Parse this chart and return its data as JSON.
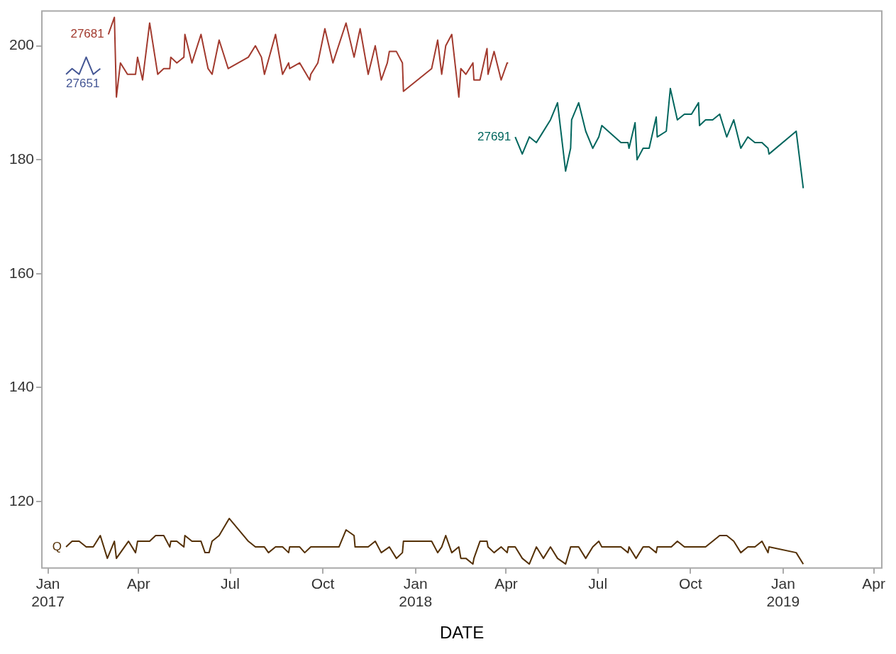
{
  "chart_data": {
    "type": "line",
    "xlabel": "DATE",
    "xlim": [
      "2016-12-26",
      "2019-04-09"
    ],
    "xticks": [
      {
        "value": "2017-01-01",
        "label": "Jan\n2017"
      },
      {
        "value": "2017-04-01",
        "label": "Apr"
      },
      {
        "value": "2017-07-01",
        "label": "Jul"
      },
      {
        "value": "2017-10-01",
        "label": "Oct"
      },
      {
        "value": "2018-01-01",
        "label": "Jan\n2018"
      },
      {
        "value": "2018-04-01",
        "label": "Apr"
      },
      {
        "value": "2018-07-01",
        "label": "Jul"
      },
      {
        "value": "2018-10-01",
        "label": "Oct"
      },
      {
        "value": "2019-01-01",
        "label": "Jan\n2019"
      },
      {
        "value": "2019-04-01",
        "label": "Apr"
      }
    ],
    "ylim": [
      108.3,
      206.1
    ],
    "yticks": [
      120,
      140,
      160,
      180,
      200
    ],
    "grid": false,
    "legend": false,
    "marker": "none",
    "line_style": "solid",
    "series": [
      {
        "name": "27651",
        "color": "#445694",
        "x": [
          "2017-01-19",
          "2017-01-25",
          "2017-02-01",
          "2017-02-08",
          "2017-02-15",
          "2017-02-22"
        ],
        "values": [
          195,
          196,
          195,
          198,
          195,
          196
        ]
      },
      {
        "name": "27681",
        "color": "#a23a2e",
        "x": [
          "2017-03-02",
          "2017-03-08",
          "2017-03-10",
          "2017-03-14",
          "2017-03-21",
          "2017-03-29",
          "2017-03-31",
          "2017-04-05",
          "2017-04-12",
          "2017-04-20",
          "2017-04-26",
          "2017-05-02",
          "2017-05-03",
          "2017-05-09",
          "2017-05-16",
          "2017-05-17",
          "2017-05-24",
          "2017-06-02",
          "2017-06-09",
          "2017-06-13",
          "2017-06-20",
          "2017-06-29",
          "2017-07-19",
          "2017-07-26",
          "2017-08-01",
          "2017-08-04",
          "2017-08-15",
          "2017-08-22",
          "2017-08-28",
          "2017-08-29",
          "2017-09-08",
          "2017-09-18",
          "2017-09-19",
          "2017-09-26",
          "2017-10-03",
          "2017-10-11",
          "2017-10-24",
          "2017-11-01",
          "2017-11-07",
          "2017-11-15",
          "2017-11-22",
          "2017-11-28",
          "2017-12-04",
          "2017-12-06",
          "2017-12-13",
          "2017-12-19",
          "2017-12-20",
          "2018-01-17",
          "2018-01-23",
          "2018-01-27",
          "2018-01-31",
          "2018-02-06",
          "2018-02-13",
          "2018-02-15",
          "2018-02-20",
          "2018-02-27",
          "2018-02-28",
          "2018-03-06",
          "2018-03-13",
          "2018-03-14",
          "2018-03-20",
          "2018-03-27",
          "2018-04-02",
          "2018-04-03"
        ],
        "values": [
          202,
          205,
          191,
          197,
          195,
          195,
          198,
          194,
          204,
          195,
          196,
          196,
          198,
          197,
          198,
          202,
          197,
          202,
          196,
          195,
          201,
          196,
          198,
          200,
          198,
          195,
          202,
          195,
          197,
          196,
          197,
          194,
          195,
          197,
          203,
          197,
          204,
          198,
          203,
          195,
          200,
          194,
          197,
          199,
          199,
          197,
          192,
          196,
          201,
          195,
          200,
          202,
          191,
          196,
          195,
          197,
          194,
          194,
          199.5,
          195,
          199,
          194,
          197,
          197
        ]
      },
      {
        "name": "27691",
        "color": "#01665e",
        "x": [
          "2018-04-10",
          "2018-04-17",
          "2018-04-24",
          "2018-05-01",
          "2018-05-15",
          "2018-05-22",
          "2018-05-30",
          "2018-06-04",
          "2018-06-05",
          "2018-06-12",
          "2018-06-19",
          "2018-06-26",
          "2018-07-02",
          "2018-07-05",
          "2018-07-24",
          "2018-07-31",
          "2018-08-01",
          "2018-08-07",
          "2018-08-09",
          "2018-08-15",
          "2018-08-21",
          "2018-08-28",
          "2018-08-29",
          "2018-09-07",
          "2018-09-11",
          "2018-09-18",
          "2018-09-25",
          "2018-10-02",
          "2018-10-09",
          "2018-10-10",
          "2018-10-16",
          "2018-10-23",
          "2018-10-30",
          "2018-11-06",
          "2018-11-13",
          "2018-11-20",
          "2018-11-27",
          "2018-12-04",
          "2018-12-11",
          "2018-12-17",
          "2018-12-18",
          "2019-01-14",
          "2019-01-21"
        ],
        "values": [
          184,
          181,
          184,
          183,
          187,
          190,
          178,
          182,
          187,
          190,
          185,
          182,
          184,
          186,
          183,
          183,
          182,
          186.5,
          180,
          182,
          182,
          187.5,
          184,
          185,
          192.5,
          187,
          188,
          188,
          190,
          186,
          187,
          187,
          188,
          184,
          187,
          182,
          184,
          183,
          183,
          182,
          181,
          185,
          175
        ]
      },
      {
        "name": "Q",
        "color": "#543005",
        "x": [
          "2017-01-19",
          "2017-01-25",
          "2017-02-01",
          "2017-02-08",
          "2017-02-15",
          "2017-02-22",
          "2017-03-01",
          "2017-03-08",
          "2017-03-10",
          "2017-03-22",
          "2017-03-29",
          "2017-03-31",
          "2017-04-12",
          "2017-04-18",
          "2017-04-26",
          "2017-05-02",
          "2017-05-03",
          "2017-05-09",
          "2017-05-16",
          "2017-05-17",
          "2017-05-24",
          "2017-06-02",
          "2017-06-06",
          "2017-06-10",
          "2017-06-13",
          "2017-06-20",
          "2017-06-30",
          "2017-07-19",
          "2017-07-26",
          "2017-08-04",
          "2017-08-08",
          "2017-08-15",
          "2017-08-22",
          "2017-08-28",
          "2017-08-29",
          "2017-09-08",
          "2017-09-13",
          "2017-09-19",
          "2017-10-17",
          "2017-10-24",
          "2017-11-01",
          "2017-11-02",
          "2017-11-15",
          "2017-11-22",
          "2017-11-28",
          "2017-12-06",
          "2017-12-13",
          "2017-12-19",
          "2017-12-20",
          "2018-01-17",
          "2018-01-23",
          "2018-01-27",
          "2018-01-31",
          "2018-02-06",
          "2018-02-13",
          "2018-02-15",
          "2018-02-20",
          "2018-02-27",
          "2018-02-28",
          "2018-03-06",
          "2018-03-13",
          "2018-03-14",
          "2018-03-20",
          "2018-03-27",
          "2018-04-02",
          "2018-04-03",
          "2018-04-10",
          "2018-04-17",
          "2018-04-24",
          "2018-05-01",
          "2018-05-08",
          "2018-05-15",
          "2018-05-22",
          "2018-05-30",
          "2018-06-04",
          "2018-06-12",
          "2018-06-19",
          "2018-06-26",
          "2018-07-02",
          "2018-07-05",
          "2018-07-24",
          "2018-07-31",
          "2018-08-01",
          "2018-08-08",
          "2018-08-15",
          "2018-08-21",
          "2018-08-28",
          "2018-08-29",
          "2018-09-12",
          "2018-09-18",
          "2018-09-25",
          "2018-10-16",
          "2018-10-30",
          "2018-11-06",
          "2018-11-13",
          "2018-11-20",
          "2018-11-27",
          "2018-12-04",
          "2018-12-11",
          "2018-12-17",
          "2018-12-18",
          "2019-01-14",
          "2019-01-21"
        ],
        "values": [
          112,
          113,
          113,
          112,
          112,
          114,
          110,
          113,
          110,
          113,
          111,
          113,
          113,
          114,
          114,
          112,
          113,
          113,
          112,
          114,
          113,
          113,
          111,
          111,
          113,
          114,
          117,
          113,
          112,
          112,
          111,
          112,
          112,
          111,
          112,
          112,
          111,
          112,
          112,
          115,
          114,
          112,
          112,
          113,
          111,
          112,
          110,
          111,
          113,
          113,
          111,
          112,
          114,
          111,
          112,
          110,
          110,
          109,
          110,
          113,
          113,
          112,
          111,
          112,
          111,
          112,
          112,
          110,
          109,
          112,
          110,
          112,
          110,
          109,
          112,
          112,
          110,
          112,
          113,
          112,
          112,
          111,
          112,
          110,
          112,
          112,
          111,
          112,
          112,
          113,
          112,
          112,
          114,
          114,
          113,
          111,
          112,
          112,
          113,
          111,
          112,
          111,
          109
        ]
      }
    ]
  }
}
